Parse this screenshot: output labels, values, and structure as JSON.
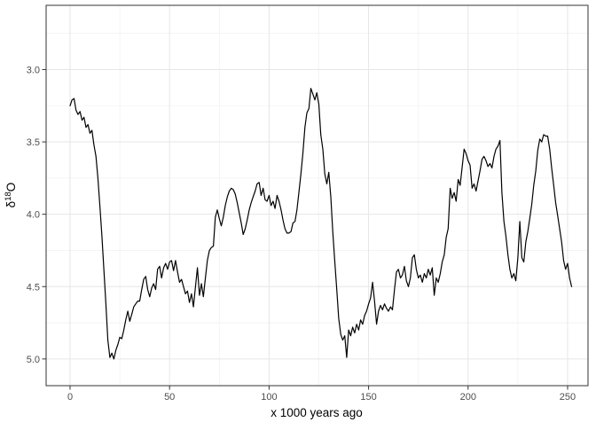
{
  "figure": {
    "background": "#ffffff"
  },
  "chart_data": {
    "type": "line",
    "title": "",
    "xlabel": "x 1000 years ago",
    "ylabel": "δ18O",
    "ylabel_parts": {
      "base": "δ",
      "superscript": "18",
      "tail": "O"
    },
    "y_axis_reversed": true,
    "xlim": [
      -12.0,
      260.3
    ],
    "ylim": [
      5.19,
      2.56
    ],
    "grid": true,
    "legend_position": "none",
    "x_ticks": {
      "values": [
        0,
        50,
        100,
        150,
        200,
        250
      ],
      "labels": [
        "0",
        "50",
        "100",
        "150",
        "200",
        "250"
      ]
    },
    "y_ticks": {
      "values": [
        3.0,
        3.5,
        4.0,
        4.5,
        5.0
      ],
      "labels": [
        "3.0",
        "3.5",
        "4.0",
        "4.5",
        "5.0"
      ]
    },
    "x_minor_gridlines": [
      25,
      75,
      125,
      175,
      225
    ],
    "y_minor_gridlines": [
      2.75,
      3.25,
      3.75,
      4.25,
      4.75
    ],
    "colors": {
      "line": "#000000",
      "panel_background": "#ffffff",
      "panel_border": "#333333",
      "grid_major": "#e6e6e6",
      "grid_minor": "#f2f2f2",
      "tick": "#333333",
      "tick_label": "#4d4d4d",
      "axis_title": "#000000"
    },
    "series": [
      {
        "name": "δ18O",
        "x": [
          0,
          1,
          2,
          3,
          4,
          5,
          6,
          7,
          8,
          9,
          10,
          11,
          12,
          13,
          14,
          15,
          16,
          17,
          18,
          19,
          20,
          21,
          22,
          23,
          24,
          25,
          26,
          27,
          28,
          29,
          30,
          31,
          32,
          33,
          34,
          35,
          36,
          37,
          38,
          39,
          40,
          41,
          42,
          43,
          44,
          45,
          46,
          47,
          48,
          49,
          50,
          51,
          52,
          53,
          54,
          55,
          56,
          57,
          58,
          59,
          60,
          61,
          62,
          63,
          64,
          65,
          66,
          67,
          68,
          69,
          70,
          71,
          72,
          73,
          74,
          75,
          76,
          77,
          78,
          79,
          80,
          81,
          82,
          83,
          84,
          85,
          86,
          87,
          88,
          89,
          90,
          91,
          92,
          93,
          94,
          95,
          96,
          97,
          98,
          99,
          100,
          101,
          102,
          103,
          104,
          105,
          106,
          107,
          108,
          109,
          110,
          111,
          112,
          113,
          114,
          115,
          116,
          117,
          118,
          119,
          120,
          121,
          122,
          123,
          124,
          125,
          126,
          127,
          128,
          129,
          130,
          131,
          132,
          133,
          134,
          135,
          136,
          137,
          138,
          139,
          140,
          141,
          142,
          143,
          144,
          145,
          146,
          147,
          148,
          149,
          150,
          151,
          152,
          153,
          154,
          155,
          156,
          157,
          158,
          159,
          160,
          161,
          162,
          163,
          164,
          165,
          166,
          167,
          168,
          169,
          170,
          171,
          172,
          173,
          174,
          175,
          176,
          177,
          178,
          179,
          180,
          181,
          182,
          183,
          184,
          185,
          186,
          187,
          188,
          189,
          190,
          191,
          192,
          193,
          194,
          195,
          196,
          197,
          198,
          199,
          200,
          201,
          202,
          203,
          204,
          205,
          206,
          207,
          208,
          209,
          210,
          211,
          212,
          213,
          214,
          215,
          216,
          217,
          218,
          219,
          220,
          221,
          222,
          223,
          224,
          225,
          226,
          227,
          228,
          229,
          230,
          231,
          232,
          233,
          234,
          235,
          236,
          237,
          238,
          239,
          240,
          241,
          242,
          243,
          244,
          245,
          246,
          247,
          248,
          249,
          250,
          251,
          252
        ],
        "values": [
          3.25,
          3.21,
          3.2,
          3.28,
          3.31,
          3.29,
          3.35,
          3.33,
          3.4,
          3.38,
          3.44,
          3.42,
          3.52,
          3.6,
          3.75,
          3.95,
          4.15,
          4.38,
          4.62,
          4.87,
          4.99,
          4.96,
          5.0,
          4.94,
          4.9,
          4.85,
          4.86,
          4.8,
          4.73,
          4.67,
          4.74,
          4.69,
          4.64,
          4.62,
          4.6,
          4.6,
          4.52,
          4.45,
          4.43,
          4.52,
          4.57,
          4.51,
          4.48,
          4.52,
          4.38,
          4.36,
          4.44,
          4.37,
          4.34,
          4.38,
          4.33,
          4.32,
          4.39,
          4.32,
          4.4,
          4.47,
          4.45,
          4.5,
          4.55,
          4.53,
          4.61,
          4.55,
          4.64,
          4.5,
          4.37,
          4.56,
          4.48,
          4.57,
          4.44,
          4.32,
          4.25,
          4.23,
          4.22,
          4.02,
          3.97,
          4.03,
          4.08,
          4.02,
          3.94,
          3.88,
          3.84,
          3.82,
          3.83,
          3.86,
          3.92,
          3.99,
          4.06,
          4.14,
          4.1,
          4.04,
          3.97,
          3.92,
          3.88,
          3.84,
          3.79,
          3.78,
          3.87,
          3.82,
          3.9,
          3.91,
          3.87,
          3.94,
          3.91,
          3.96,
          3.87,
          3.91,
          3.97,
          4.04,
          4.1,
          4.13,
          4.13,
          4.12,
          4.06,
          4.05,
          3.97,
          3.85,
          3.72,
          3.58,
          3.4,
          3.3,
          3.27,
          3.13,
          3.17,
          3.21,
          3.16,
          3.24,
          3.45,
          3.55,
          3.72,
          3.79,
          3.71,
          3.88,
          4.12,
          4.32,
          4.52,
          4.72,
          4.83,
          4.87,
          4.84,
          4.99,
          4.8,
          4.84,
          4.78,
          4.82,
          4.76,
          4.8,
          4.73,
          4.76,
          4.7,
          4.67,
          4.62,
          4.58,
          4.47,
          4.6,
          4.76,
          4.67,
          4.63,
          4.66,
          4.62,
          4.65,
          4.67,
          4.64,
          4.66,
          4.52,
          4.4,
          4.38,
          4.44,
          4.42,
          4.36,
          4.46,
          4.5,
          4.44,
          4.3,
          4.28,
          4.38,
          4.44,
          4.42,
          4.47,
          4.41,
          4.44,
          4.38,
          4.42,
          4.37,
          4.56,
          4.44,
          4.47,
          4.41,
          4.33,
          4.28,
          4.16,
          4.1,
          3.82,
          3.89,
          3.85,
          3.91,
          3.76,
          3.8,
          3.68,
          3.55,
          3.58,
          3.63,
          3.66,
          3.82,
          3.79,
          3.84,
          3.77,
          3.7,
          3.62,
          3.6,
          3.63,
          3.67,
          3.65,
          3.68,
          3.6,
          3.55,
          3.53,
          3.49,
          3.85,
          4.05,
          4.15,
          4.28,
          4.38,
          4.44,
          4.41,
          4.46,
          4.3,
          4.05,
          4.3,
          4.33,
          4.19,
          4.12,
          4.03,
          3.93,
          3.8,
          3.7,
          3.56,
          3.48,
          3.5,
          3.45,
          3.46,
          3.46,
          3.55,
          3.68,
          3.8,
          3.92,
          4.01,
          4.1,
          4.19,
          4.32,
          4.38,
          4.34,
          4.44,
          4.5
        ]
      }
    ]
  }
}
